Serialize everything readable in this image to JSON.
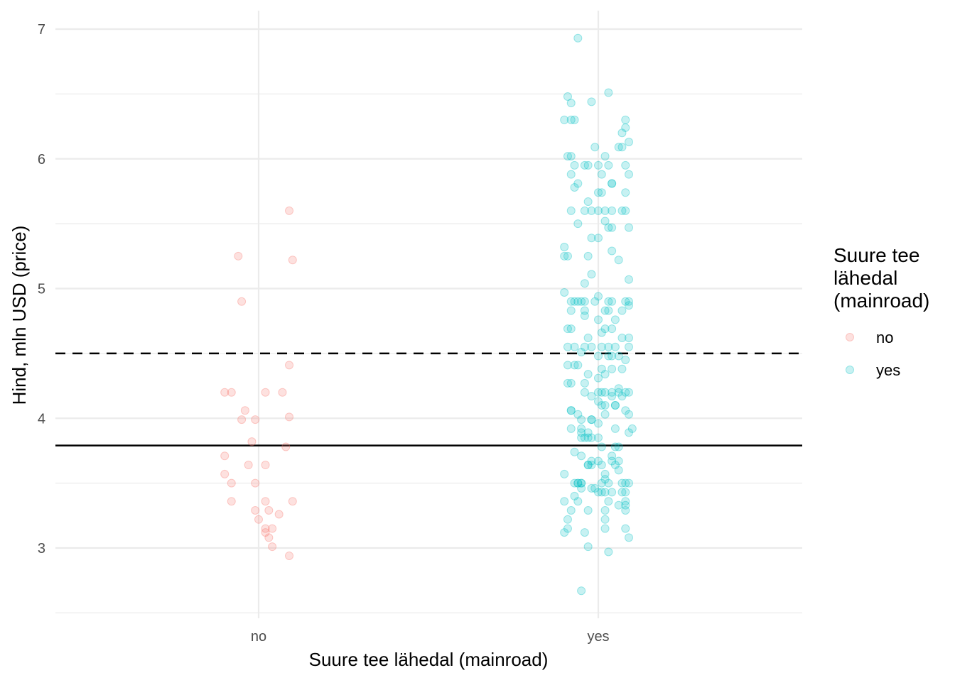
{
  "chart_data": {
    "type": "scatter",
    "xlabel": "Suure tee lähedal (mainroad)",
    "ylabel": "Hind, mln USD (price)",
    "categories": [
      "no",
      "yes"
    ],
    "ylim": [
      2.5,
      7.1
    ],
    "yticks": [
      3,
      4,
      5,
      6,
      7
    ],
    "grid": true,
    "reference_lines": [
      {
        "y": 4.5,
        "style": "dashed"
      },
      {
        "y": 3.79,
        "style": "solid"
      }
    ],
    "legend": {
      "title_lines": [
        "Suure tee",
        "lähedal",
        "(mainroad)"
      ],
      "position": "right",
      "entries": [
        {
          "label": "no",
          "color": "#F8766D"
        },
        {
          "label": "yes",
          "color": "#00BFC4"
        }
      ]
    },
    "series": [
      {
        "category": "no",
        "color": "#F8766D",
        "points": [
          [
            -0.08,
            4.2
          ],
          [
            -0.1,
            4.2
          ],
          [
            -0.04,
            4.06
          ],
          [
            -0.05,
            3.99
          ],
          [
            -0.01,
            3.99
          ],
          [
            0.02,
            4.2
          ],
          [
            0.07,
            4.2
          ],
          [
            0.09,
            4.41
          ],
          [
            0.09,
            4.01
          ],
          [
            0.08,
            3.78
          ],
          [
            -0.02,
            3.82
          ],
          [
            -0.1,
            3.71
          ],
          [
            -0.03,
            3.64
          ],
          [
            0.02,
            3.64
          ],
          [
            -0.1,
            3.57
          ],
          [
            -0.08,
            3.5
          ],
          [
            -0.01,
            3.5
          ],
          [
            -0.08,
            3.36
          ],
          [
            0.02,
            3.36
          ],
          [
            0.1,
            3.36
          ],
          [
            -0.01,
            3.29
          ],
          [
            0.03,
            3.29
          ],
          [
            0.06,
            3.26
          ],
          [
            0.0,
            3.22
          ],
          [
            0.02,
            3.15
          ],
          [
            0.04,
            3.15
          ],
          [
            0.02,
            3.12
          ],
          [
            0.03,
            3.08
          ],
          [
            0.04,
            3.01
          ],
          [
            0.09,
            2.94
          ],
          [
            0.09,
            5.6
          ],
          [
            -0.06,
            5.25
          ],
          [
            0.1,
            5.22
          ],
          [
            -0.05,
            4.9
          ]
        ]
      },
      {
        "category": "yes",
        "color": "#00BFC4",
        "points": [
          [
            -0.06,
            6.93
          ],
          [
            0.03,
            6.51
          ],
          [
            -0.09,
            6.48
          ],
          [
            -0.08,
            6.43
          ],
          [
            -0.02,
            6.44
          ],
          [
            -0.1,
            6.3
          ],
          [
            -0.08,
            6.3
          ],
          [
            -0.07,
            6.3
          ],
          [
            0.08,
            6.3
          ],
          [
            0.08,
            6.24
          ],
          [
            0.07,
            6.2
          ],
          [
            0.09,
            6.13
          ],
          [
            0.06,
            6.09
          ],
          [
            -0.01,
            6.09
          ],
          [
            0.07,
            6.09
          ],
          [
            -0.09,
            6.02
          ],
          [
            -0.08,
            6.02
          ],
          [
            0.02,
            6.02
          ],
          [
            -0.07,
            5.95
          ],
          [
            -0.04,
            5.95
          ],
          [
            -0.03,
            5.95
          ],
          [
            0.0,
            5.95
          ],
          [
            0.03,
            5.95
          ],
          [
            0.08,
            5.95
          ],
          [
            -0.08,
            5.88
          ],
          [
            0.01,
            5.88
          ],
          [
            0.09,
            5.88
          ],
          [
            -0.06,
            5.81
          ],
          [
            0.04,
            5.81
          ],
          [
            0.04,
            5.81
          ],
          [
            -0.07,
            5.78
          ],
          [
            0.01,
            5.74
          ],
          [
            0.0,
            5.74
          ],
          [
            0.08,
            5.74
          ],
          [
            -0.03,
            5.67
          ],
          [
            -0.08,
            5.6
          ],
          [
            -0.04,
            5.6
          ],
          [
            -0.02,
            5.6
          ],
          [
            0.0,
            5.6
          ],
          [
            0.02,
            5.6
          ],
          [
            0.04,
            5.6
          ],
          [
            0.07,
            5.6
          ],
          [
            0.08,
            5.6
          ],
          [
            -0.06,
            5.5
          ],
          [
            0.02,
            5.52
          ],
          [
            0.03,
            5.47
          ],
          [
            0.04,
            5.47
          ],
          [
            0.09,
            5.47
          ],
          [
            -0.02,
            5.39
          ],
          [
            0.0,
            5.39
          ],
          [
            -0.1,
            5.32
          ],
          [
            -0.1,
            5.25
          ],
          [
            -0.09,
            5.25
          ],
          [
            -0.03,
            5.25
          ],
          [
            0.04,
            5.29
          ],
          [
            0.06,
            5.22
          ],
          [
            -0.02,
            5.11
          ],
          [
            0.09,
            5.07
          ],
          [
            -0.04,
            5.04
          ],
          [
            -0.1,
            4.97
          ],
          [
            -0.08,
            4.9
          ],
          [
            -0.07,
            4.9
          ],
          [
            -0.06,
            4.9
          ],
          [
            -0.05,
            4.9
          ],
          [
            -0.04,
            4.9
          ],
          [
            -0.01,
            4.9
          ],
          [
            0.0,
            4.94
          ],
          [
            0.03,
            4.9
          ],
          [
            0.04,
            4.9
          ],
          [
            0.08,
            4.9
          ],
          [
            0.09,
            4.9
          ],
          [
            0.07,
            4.83
          ],
          [
            0.09,
            4.87
          ],
          [
            -0.08,
            4.83
          ],
          [
            -0.04,
            4.83
          ],
          [
            0.02,
            4.83
          ],
          [
            0.03,
            4.83
          ],
          [
            -0.04,
            4.79
          ],
          [
            0.0,
            4.76
          ],
          [
            0.05,
            4.76
          ],
          [
            -0.09,
            4.69
          ],
          [
            -0.08,
            4.69
          ],
          [
            0.02,
            4.69
          ],
          [
            0.04,
            4.69
          ],
          [
            0.01,
            4.66
          ],
          [
            -0.03,
            4.62
          ],
          [
            0.07,
            4.62
          ],
          [
            0.09,
            4.62
          ],
          [
            -0.09,
            4.55
          ],
          [
            -0.07,
            4.55
          ],
          [
            -0.04,
            4.55
          ],
          [
            -0.02,
            4.55
          ],
          [
            0.01,
            4.55
          ],
          [
            0.03,
            4.55
          ],
          [
            0.05,
            4.55
          ],
          [
            0.09,
            4.55
          ],
          [
            -0.05,
            4.51
          ],
          [
            0.0,
            4.48
          ],
          [
            0.03,
            4.48
          ],
          [
            0.04,
            4.48
          ],
          [
            0.06,
            4.48
          ],
          [
            0.08,
            4.45
          ],
          [
            -0.09,
            4.41
          ],
          [
            -0.07,
            4.41
          ],
          [
            -0.06,
            4.41
          ],
          [
            0.01,
            4.38
          ],
          [
            0.04,
            4.38
          ],
          [
            0.07,
            4.38
          ],
          [
            -0.03,
            4.34
          ],
          [
            0.0,
            4.31
          ],
          [
            0.02,
            4.34
          ],
          [
            -0.09,
            4.27
          ],
          [
            -0.08,
            4.27
          ],
          [
            -0.04,
            4.27
          ],
          [
            0.06,
            4.23
          ],
          [
            -0.04,
            4.2
          ],
          [
            0.0,
            4.2
          ],
          [
            0.01,
            4.2
          ],
          [
            0.02,
            4.2
          ],
          [
            0.04,
            4.2
          ],
          [
            0.06,
            4.2
          ],
          [
            0.08,
            4.2
          ],
          [
            0.09,
            4.2
          ],
          [
            -0.02,
            4.17
          ],
          [
            0.04,
            4.17
          ],
          [
            0.07,
            4.17
          ],
          [
            0.0,
            4.13
          ],
          [
            0.01,
            4.1
          ],
          [
            0.02,
            4.1
          ],
          [
            0.05,
            4.1
          ],
          [
            0.05,
            4.1
          ],
          [
            -0.08,
            4.06
          ],
          [
            -0.08,
            4.06
          ],
          [
            0.08,
            4.06
          ],
          [
            0.09,
            4.03
          ],
          [
            -0.06,
            4.03
          ],
          [
            0.02,
            4.03
          ],
          [
            -0.05,
            3.99
          ],
          [
            -0.02,
            3.99
          ],
          [
            -0.02,
            3.99
          ],
          [
            0.0,
            3.96
          ],
          [
            -0.08,
            3.92
          ],
          [
            -0.05,
            3.92
          ],
          [
            0.05,
            3.92
          ],
          [
            0.1,
            3.92
          ],
          [
            -0.05,
            3.89
          ],
          [
            -0.03,
            3.89
          ],
          [
            -0.05,
            3.85
          ],
          [
            -0.04,
            3.85
          ],
          [
            -0.03,
            3.85
          ],
          [
            -0.02,
            3.85
          ],
          [
            0.0,
            3.85
          ],
          [
            0.09,
            3.89
          ],
          [
            0.01,
            3.78
          ],
          [
            0.05,
            3.78
          ],
          [
            0.06,
            3.78
          ],
          [
            -0.07,
            3.74
          ],
          [
            0.04,
            3.71
          ],
          [
            -0.05,
            3.71
          ],
          [
            -0.02,
            3.67
          ],
          [
            0.0,
            3.67
          ],
          [
            0.04,
            3.67
          ],
          [
            0.06,
            3.67
          ],
          [
            -0.03,
            3.64
          ],
          [
            -0.02,
            3.64
          ],
          [
            -0.03,
            3.64
          ],
          [
            0.01,
            3.64
          ],
          [
            0.05,
            3.64
          ],
          [
            0.06,
            3.6
          ],
          [
            -0.1,
            3.57
          ],
          [
            0.02,
            3.57
          ],
          [
            0.02,
            3.53
          ],
          [
            -0.07,
            3.5
          ],
          [
            -0.06,
            3.5
          ],
          [
            -0.06,
            3.5
          ],
          [
            -0.05,
            3.5
          ],
          [
            -0.05,
            3.5
          ],
          [
            0.01,
            3.5
          ],
          [
            0.03,
            3.5
          ],
          [
            0.07,
            3.5
          ],
          [
            0.08,
            3.5
          ],
          [
            0.09,
            3.5
          ],
          [
            -0.05,
            3.46
          ],
          [
            -0.02,
            3.46
          ],
          [
            -0.01,
            3.46
          ],
          [
            0.0,
            3.43
          ],
          [
            0.01,
            3.43
          ],
          [
            0.02,
            3.43
          ],
          [
            0.04,
            3.43
          ],
          [
            0.07,
            3.43
          ],
          [
            0.08,
            3.43
          ],
          [
            -0.07,
            3.4
          ],
          [
            -0.1,
            3.36
          ],
          [
            -0.06,
            3.36
          ],
          [
            0.03,
            3.36
          ],
          [
            0.08,
            3.36
          ],
          [
            0.08,
            3.33
          ],
          [
            0.06,
            3.33
          ],
          [
            -0.08,
            3.29
          ],
          [
            -0.03,
            3.29
          ],
          [
            0.02,
            3.29
          ],
          [
            0.08,
            3.29
          ],
          [
            -0.09,
            3.22
          ],
          [
            0.02,
            3.22
          ],
          [
            -0.09,
            3.15
          ],
          [
            0.02,
            3.15
          ],
          [
            0.08,
            3.15
          ],
          [
            -0.1,
            3.12
          ],
          [
            -0.04,
            3.12
          ],
          [
            0.09,
            3.08
          ],
          [
            -0.03,
            3.01
          ],
          [
            0.03,
            2.97
          ],
          [
            -0.05,
            2.67
          ]
        ]
      }
    ]
  }
}
